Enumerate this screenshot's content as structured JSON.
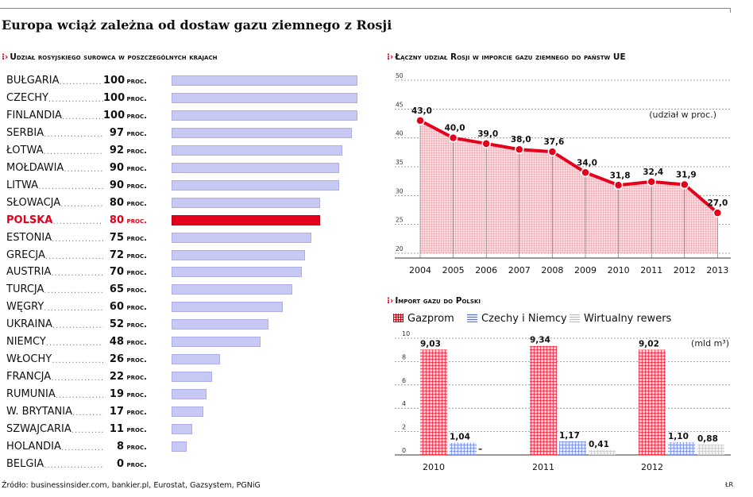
{
  "page": {
    "title": "Europa wciąż zależna od dostaw gazu ziemnego z Rosji",
    "source": "Źródło: businessinsider.com, bankier.pl, Eurostat, Gazsystem, PGNiG",
    "author": "ŁR"
  },
  "colors": {
    "accent": "#e3001b",
    "bar_light": "#c8c8f4",
    "area_fill": "#f6b6bf",
    "czechy_niemcy": "#6e86e0",
    "wirtualny": "#c9c9c9"
  },
  "chart_data": [
    {
      "type": "bar",
      "orientation": "horizontal",
      "title": "Udział rosyjskiego surowca w poszczególnych krajach",
      "unit": "PROC.",
      "highlight": "POLSKA",
      "xlim": [
        0,
        100
      ],
      "categories": [
        "Bułgaria",
        "Czechy",
        "Finlandia",
        "Serbia",
        "Łotwa",
        "Mołdawia",
        "Litwa",
        "Słowacja",
        "POLSKA",
        "Estonia",
        "Grecja",
        "Austria",
        "Turcja",
        "Węgry",
        "Ukraina",
        "Niemcy",
        "Włochy",
        "Francja",
        "Rumunia",
        "W. Brytania",
        "Szwajcaria",
        "Holandia",
        "Belgia"
      ],
      "values": [
        100,
        100,
        100,
        97,
        92,
        90,
        90,
        80,
        80,
        75,
        72,
        70,
        65,
        60,
        52,
        48,
        26,
        22,
        19,
        17,
        11,
        8,
        0
      ]
    },
    {
      "type": "area",
      "title": "Łączny udział Rosji w imporcie gazu ziemnego do państw UE",
      "note": "(udział w proc.)",
      "x": [
        "2004",
        "2005",
        "2006",
        "2007",
        "2008",
        "2009",
        "2010",
        "2011",
        "2012",
        "2013"
      ],
      "y": [
        43.0,
        40.0,
        39.0,
        38.0,
        37.6,
        34.0,
        31.8,
        32.4,
        31.9,
        27.0
      ],
      "labels": [
        "43,0",
        "40,0",
        "39,0",
        "38,0",
        "37,6",
        "34,0",
        "31,8",
        "32,4",
        "31,9",
        "27,0"
      ],
      "ylim": [
        20,
        50
      ],
      "yticks": [
        "20",
        "25",
        "30",
        "35",
        "40",
        "45",
        "50"
      ],
      "grid": true
    },
    {
      "type": "bar",
      "title": "Import gazu do Polski",
      "unit": "(mld m³)",
      "categories": [
        "2010",
        "2011",
        "2012"
      ],
      "ylim": [
        0,
        10
      ],
      "yticks": [
        "0",
        "2",
        "4",
        "6",
        "8",
        "10"
      ],
      "grid": true,
      "series": [
        {
          "name": "Gazprom",
          "values": [
            9.03,
            9.34,
            9.02
          ],
          "labels": [
            "9,03",
            "9,34",
            "9,02"
          ]
        },
        {
          "name": "Czechy i Niemcy",
          "values": [
            1.04,
            1.17,
            1.1
          ],
          "labels": [
            "1,04",
            "1,17",
            "1,10"
          ]
        },
        {
          "name": "Wirtualny rewers",
          "values": [
            0,
            0.41,
            0.88
          ],
          "labels": [
            "–",
            "0,41",
            "0,88"
          ]
        }
      ]
    }
  ]
}
